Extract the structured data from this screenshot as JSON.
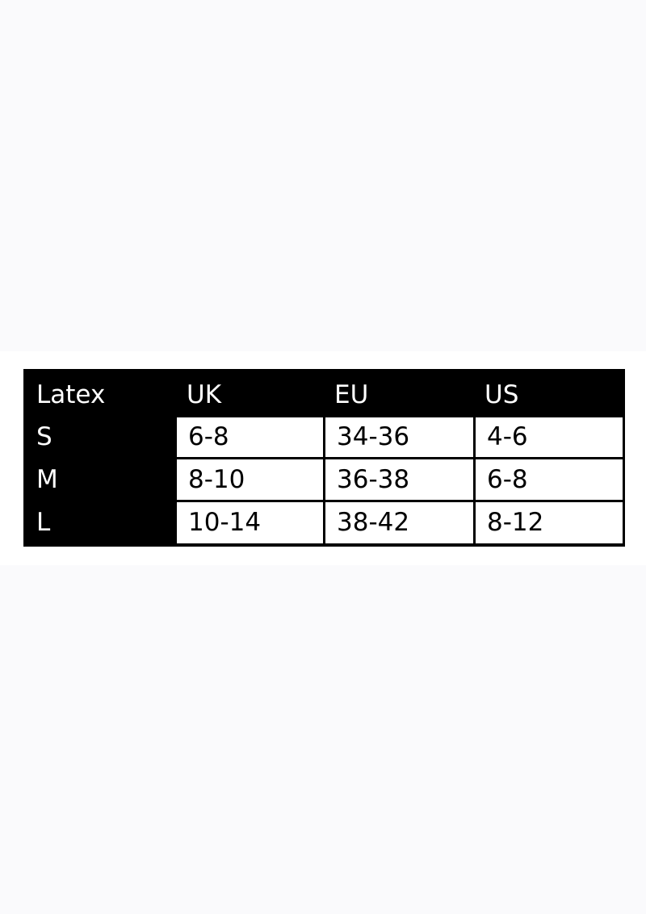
{
  "size_chart": {
    "headers": [
      "Latex",
      "UK",
      "EU",
      "US"
    ],
    "rows": [
      {
        "size": "S",
        "uk": "6-8",
        "eu": "34-36",
        "us": "4-6"
      },
      {
        "size": "M",
        "uk": "8-10",
        "eu": "36-38",
        "us": "6-8"
      },
      {
        "size": "L",
        "uk": "10-14",
        "eu": "38-42",
        "us": "8-12"
      }
    ]
  },
  "colors": {
    "header_bg": "#000000",
    "cell_bg": "#ffffff",
    "page_bg": "#fafafc"
  }
}
